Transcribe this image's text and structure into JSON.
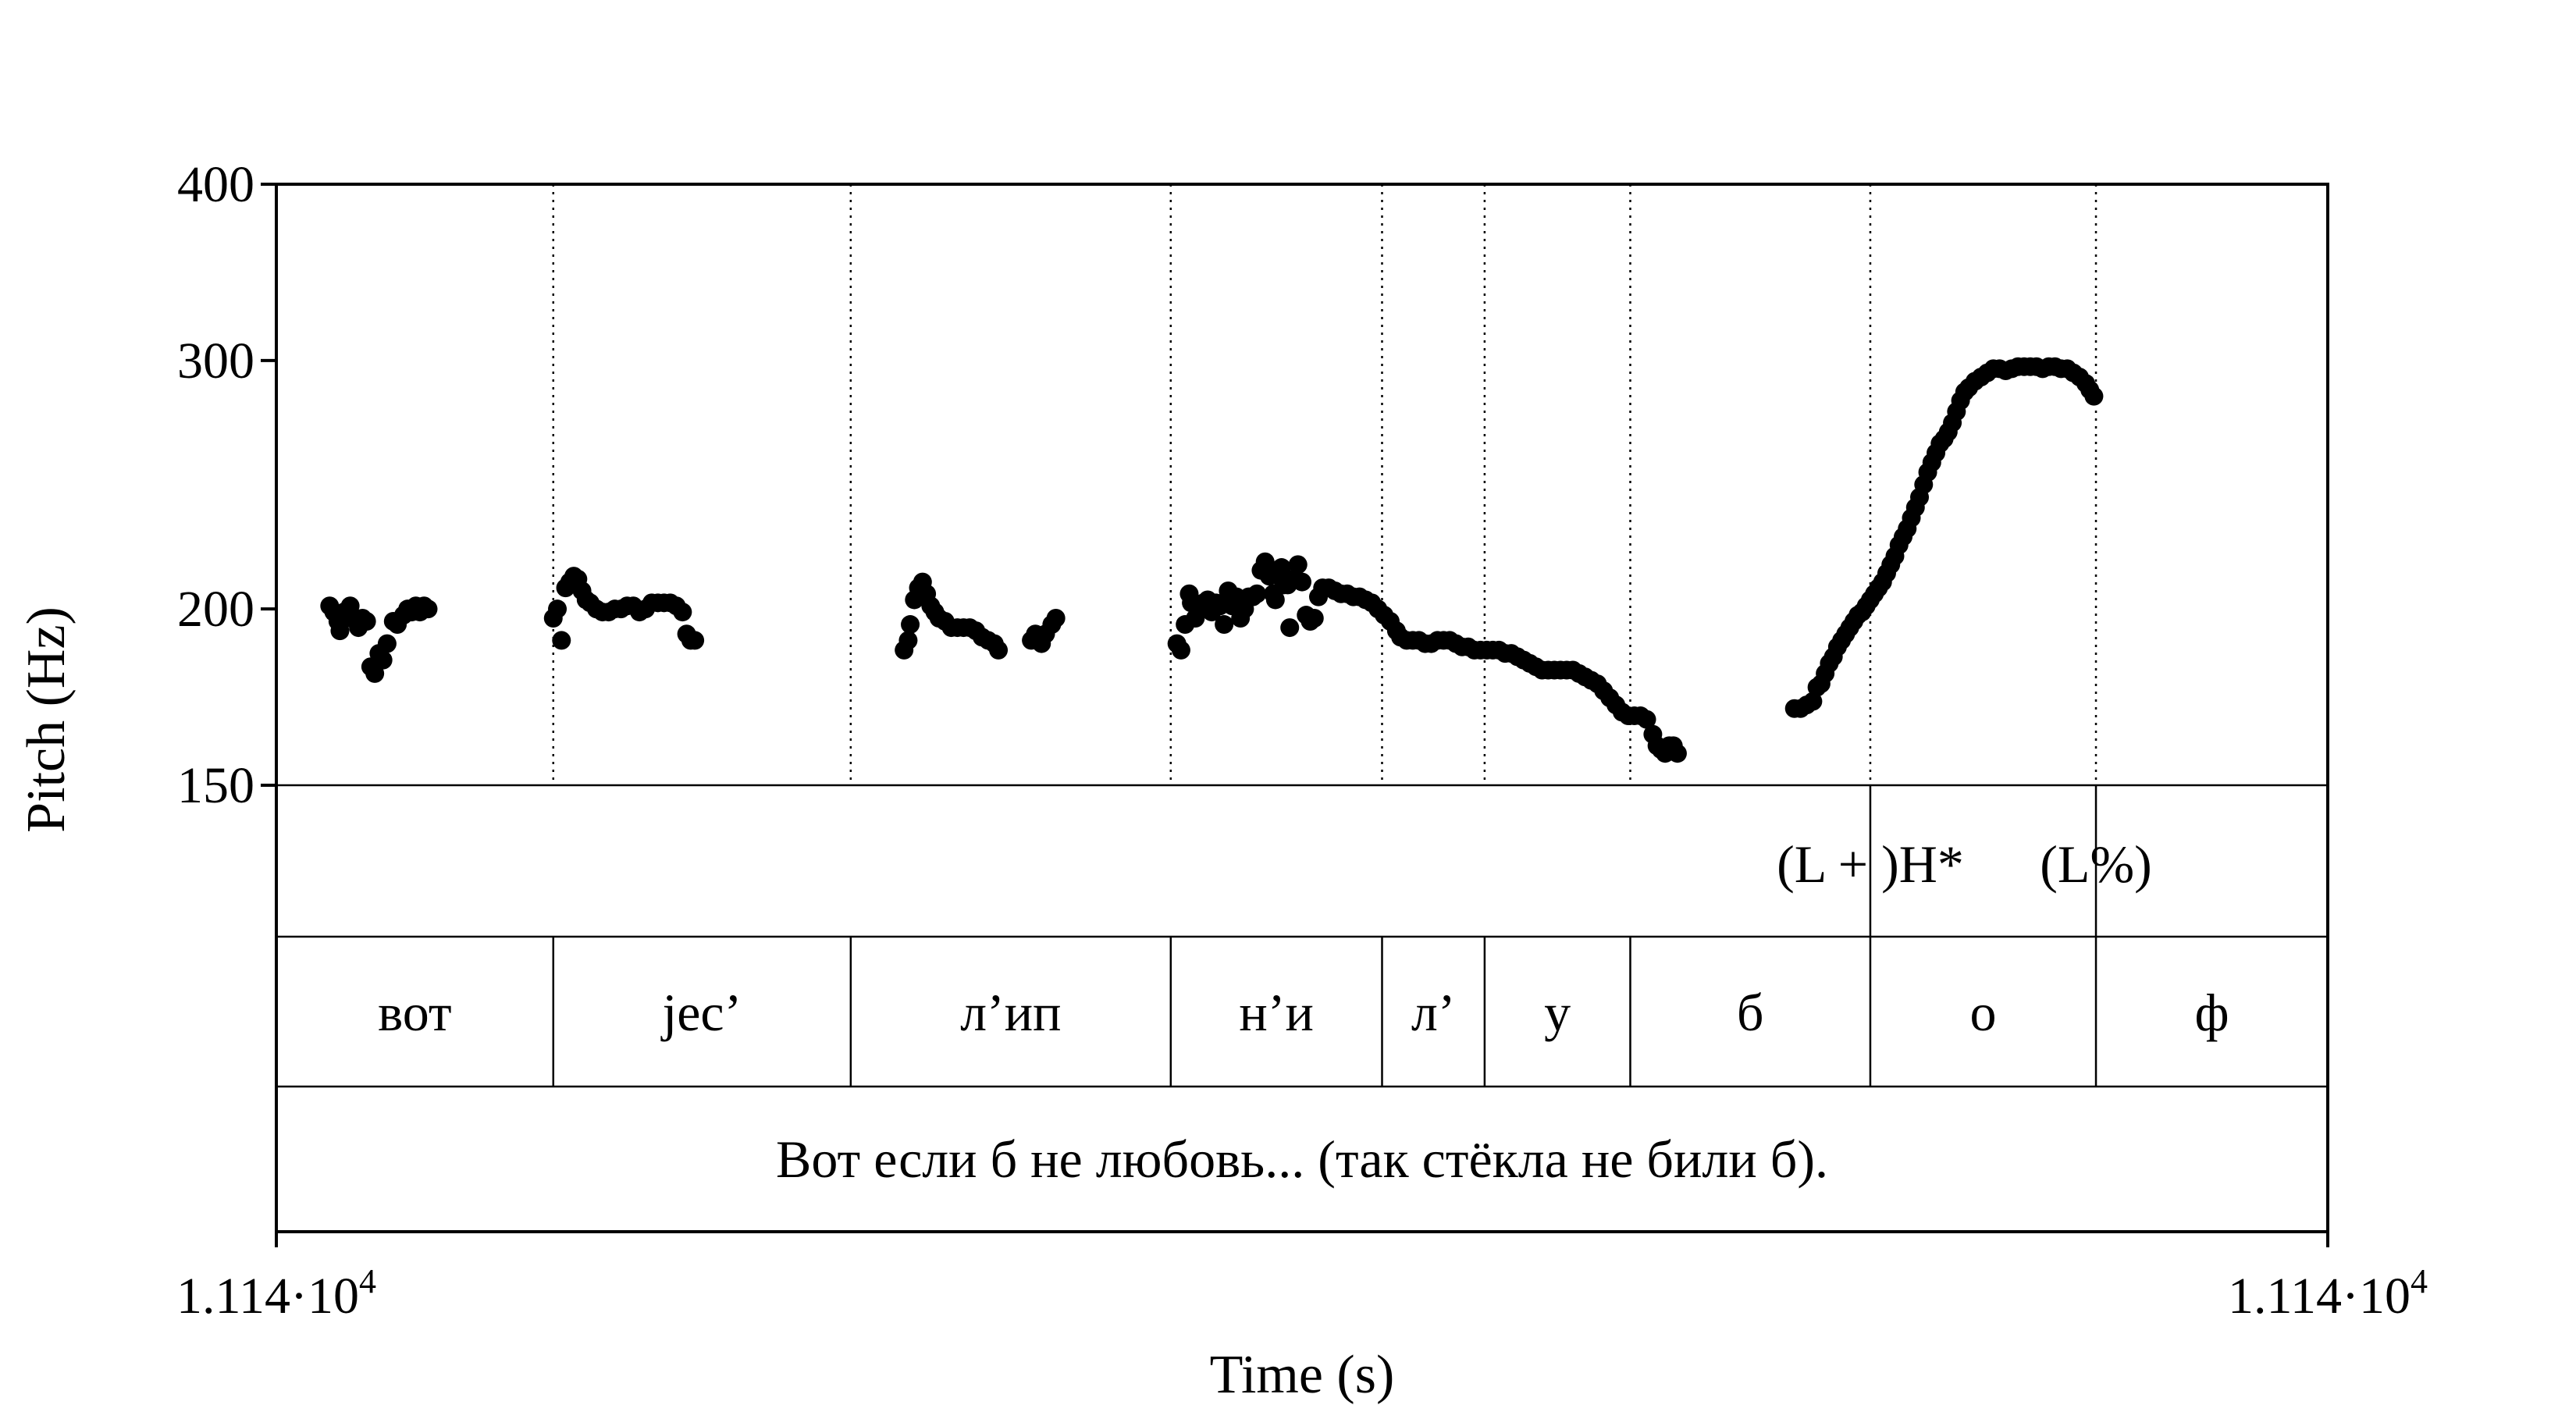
{
  "chart_data": {
    "type": "scatter",
    "xlabel": "Time (s)",
    "ylabel": "Pitch (Hz)",
    "y_scale": "log",
    "ylim": [
      150,
      400
    ],
    "yticks": [
      "150",
      "200",
      "300",
      "400"
    ],
    "xtick_left": "1.114·10",
    "xtick_right": "1.114·10",
    "xtick_exponent": "4",
    "x_range_norm": [
      0,
      1
    ],
    "boundaries": [
      0.135,
      0.28,
      0.436,
      0.539,
      0.589,
      0.66,
      0.777,
      0.887
    ],
    "tones": [
      {
        "label": "(L + )H*",
        "at": 0.777
      },
      {
        "label": "(L%)",
        "at": 0.887
      }
    ],
    "segments": [
      "вот",
      "jec’",
      "л’ип",
      "н’и",
      "л’",
      "у",
      "б",
      "о",
      "ф"
    ],
    "sentence": "Вот если б не любовь... (так стёкла не били б).",
    "pitch_points": [
      [
        0.026,
        201
      ],
      [
        0.028,
        199
      ],
      [
        0.03,
        196
      ],
      [
        0.031,
        193
      ],
      [
        0.033,
        199
      ],
      [
        0.034,
        197
      ],
      [
        0.036,
        201
      ],
      [
        0.038,
        197
      ],
      [
        0.04,
        194
      ],
      [
        0.042,
        197
      ],
      [
        0.044,
        196
      ],
      [
        0.046,
        182
      ],
      [
        0.048,
        180
      ],
      [
        0.05,
        186
      ],
      [
        0.052,
        184
      ],
      [
        0.054,
        189
      ],
      [
        0.057,
        196
      ],
      [
        0.059,
        195
      ],
      [
        0.062,
        198
      ],
      [
        0.064,
        200
      ],
      [
        0.066,
        199
      ],
      [
        0.068,
        201
      ],
      [
        0.07,
        199
      ],
      [
        0.072,
        201
      ],
      [
        0.074,
        200
      ],
      [
        0.135,
        197
      ],
      [
        0.137,
        200
      ],
      [
        0.139,
        190
      ],
      [
        0.141,
        207
      ],
      [
        0.143,
        209
      ],
      [
        0.145,
        211
      ],
      [
        0.147,
        210
      ],
      [
        0.149,
        206
      ],
      [
        0.151,
        203
      ],
      [
        0.153,
        202
      ],
      [
        0.156,
        200
      ],
      [
        0.159,
        199
      ],
      [
        0.162,
        199
      ],
      [
        0.165,
        200
      ],
      [
        0.168,
        200
      ],
      [
        0.171,
        201
      ],
      [
        0.174,
        201
      ],
      [
        0.177,
        199
      ],
      [
        0.18,
        200
      ],
      [
        0.183,
        202
      ],
      [
        0.186,
        202
      ],
      [
        0.189,
        202
      ],
      [
        0.192,
        202
      ],
      [
        0.195,
        201
      ],
      [
        0.198,
        199
      ],
      [
        0.2,
        192
      ],
      [
        0.202,
        190
      ],
      [
        0.204,
        190
      ],
      [
        0.306,
        187
      ],
      [
        0.308,
        190
      ],
      [
        0.309,
        195
      ],
      [
        0.311,
        203
      ],
      [
        0.313,
        207
      ],
      [
        0.315,
        209
      ],
      [
        0.317,
        205
      ],
      [
        0.319,
        201
      ],
      [
        0.321,
        199
      ],
      [
        0.323,
        197
      ],
      [
        0.326,
        196
      ],
      [
        0.329,
        194
      ],
      [
        0.332,
        194
      ],
      [
        0.335,
        194
      ],
      [
        0.338,
        194
      ],
      [
        0.341,
        193
      ],
      [
        0.344,
        191
      ],
      [
        0.347,
        190
      ],
      [
        0.35,
        189
      ],
      [
        0.352,
        187
      ],
      [
        0.368,
        190
      ],
      [
        0.37,
        192
      ],
      [
        0.373,
        189
      ],
      [
        0.375,
        192
      ],
      [
        0.378,
        195
      ],
      [
        0.38,
        197
      ],
      [
        0.439,
        189
      ],
      [
        0.441,
        187
      ],
      [
        0.443,
        195
      ],
      [
        0.445,
        205
      ],
      [
        0.446,
        202
      ],
      [
        0.448,
        197
      ],
      [
        0.45,
        200
      ],
      [
        0.452,
        202
      ],
      [
        0.454,
        203
      ],
      [
        0.456,
        199
      ],
      [
        0.458,
        202
      ],
      [
        0.46,
        201
      ],
      [
        0.462,
        195
      ],
      [
        0.464,
        206
      ],
      [
        0.466,
        201
      ],
      [
        0.468,
        204
      ],
      [
        0.47,
        197
      ],
      [
        0.472,
        200
      ],
      [
        0.474,
        204
      ],
      [
        0.476,
        204
      ],
      [
        0.478,
        205
      ],
      [
        0.48,
        213
      ],
      [
        0.482,
        216
      ],
      [
        0.484,
        211
      ],
      [
        0.486,
        205
      ],
      [
        0.487,
        203
      ],
      [
        0.488,
        213
      ],
      [
        0.49,
        214
      ],
      [
        0.491,
        208
      ],
      [
        0.493,
        208
      ],
      [
        0.494,
        194
      ],
      [
        0.496,
        210
      ],
      [
        0.498,
        215
      ],
      [
        0.5,
        209
      ],
      [
        0.502,
        198
      ],
      [
        0.504,
        196
      ],
      [
        0.506,
        197
      ],
      [
        0.508,
        204
      ],
      [
        0.51,
        207
      ],
      [
        0.513,
        207
      ],
      [
        0.516,
        206
      ],
      [
        0.519,
        205
      ],
      [
        0.522,
        205
      ],
      [
        0.525,
        204
      ],
      [
        0.528,
        204
      ],
      [
        0.531,
        203
      ],
      [
        0.534,
        202
      ],
      [
        0.537,
        200
      ],
      [
        0.54,
        198
      ],
      [
        0.543,
        196
      ],
      [
        0.546,
        193
      ],
      [
        0.548,
        191
      ],
      [
        0.551,
        190
      ],
      [
        0.554,
        190
      ],
      [
        0.557,
        190
      ],
      [
        0.56,
        189
      ],
      [
        0.563,
        189
      ],
      [
        0.566,
        190
      ],
      [
        0.569,
        190
      ],
      [
        0.572,
        190
      ],
      [
        0.575,
        189
      ],
      [
        0.578,
        188
      ],
      [
        0.581,
        188
      ],
      [
        0.584,
        187
      ],
      [
        0.587,
        187
      ],
      [
        0.59,
        187
      ],
      [
        0.593,
        187
      ],
      [
        0.596,
        187
      ],
      [
        0.599,
        186
      ],
      [
        0.602,
        186
      ],
      [
        0.605,
        185
      ],
      [
        0.608,
        184
      ],
      [
        0.611,
        183
      ],
      [
        0.614,
        182
      ],
      [
        0.617,
        181
      ],
      [
        0.62,
        181
      ],
      [
        0.623,
        181
      ],
      [
        0.626,
        181
      ],
      [
        0.629,
        181
      ],
      [
        0.632,
        181
      ],
      [
        0.635,
        180
      ],
      [
        0.638,
        179
      ],
      [
        0.641,
        178
      ],
      [
        0.644,
        177
      ],
      [
        0.647,
        175
      ],
      [
        0.65,
        173
      ],
      [
        0.653,
        171
      ],
      [
        0.656,
        169
      ],
      [
        0.659,
        168
      ],
      [
        0.662,
        168
      ],
      [
        0.665,
        168
      ],
      [
        0.668,
        167
      ],
      [
        0.671,
        163
      ],
      [
        0.673,
        160
      ],
      [
        0.675,
        159
      ],
      [
        0.677,
        158
      ],
      [
        0.679,
        160
      ],
      [
        0.681,
        160
      ],
      [
        0.683,
        158
      ],
      [
        0.74,
        170
      ],
      [
        0.743,
        170
      ],
      [
        0.746,
        171
      ],
      [
        0.749,
        172
      ],
      [
        0.751,
        176
      ],
      [
        0.753,
        177
      ],
      [
        0.755,
        180
      ],
      [
        0.757,
        183
      ],
      [
        0.759,
        185
      ],
      [
        0.761,
        188
      ],
      [
        0.763,
        190
      ],
      [
        0.765,
        192
      ],
      [
        0.767,
        194
      ],
      [
        0.769,
        196
      ],
      [
        0.771,
        198
      ],
      [
        0.773,
        199
      ],
      [
        0.775,
        201
      ],
      [
        0.777,
        203
      ],
      [
        0.779,
        205
      ],
      [
        0.781,
        207
      ],
      [
        0.783,
        209
      ],
      [
        0.785,
        212
      ],
      [
        0.787,
        215
      ],
      [
        0.789,
        218
      ],
      [
        0.791,
        222
      ],
      [
        0.793,
        225
      ],
      [
        0.795,
        228
      ],
      [
        0.797,
        232
      ],
      [
        0.799,
        236
      ],
      [
        0.801,
        240
      ],
      [
        0.803,
        245
      ],
      [
        0.805,
        250
      ],
      [
        0.807,
        254
      ],
      [
        0.809,
        258
      ],
      [
        0.811,
        262
      ],
      [
        0.813,
        264
      ],
      [
        0.815,
        267
      ],
      [
        0.817,
        271
      ],
      [
        0.819,
        276
      ],
      [
        0.821,
        281
      ],
      [
        0.823,
        285
      ],
      [
        0.825,
        287
      ],
      [
        0.828,
        290
      ],
      [
        0.831,
        292
      ],
      [
        0.834,
        294
      ],
      [
        0.837,
        296
      ],
      [
        0.84,
        296
      ],
      [
        0.843,
        295
      ],
      [
        0.846,
        296
      ],
      [
        0.849,
        297
      ],
      [
        0.852,
        297
      ],
      [
        0.855,
        297
      ],
      [
        0.858,
        297
      ],
      [
        0.861,
        296
      ],
      [
        0.864,
        297
      ],
      [
        0.867,
        297
      ],
      [
        0.87,
        296
      ],
      [
        0.873,
        296
      ],
      [
        0.876,
        294
      ],
      [
        0.879,
        292
      ],
      [
        0.882,
        289
      ],
      [
        0.884,
        286
      ],
      [
        0.886,
        283
      ]
    ]
  }
}
